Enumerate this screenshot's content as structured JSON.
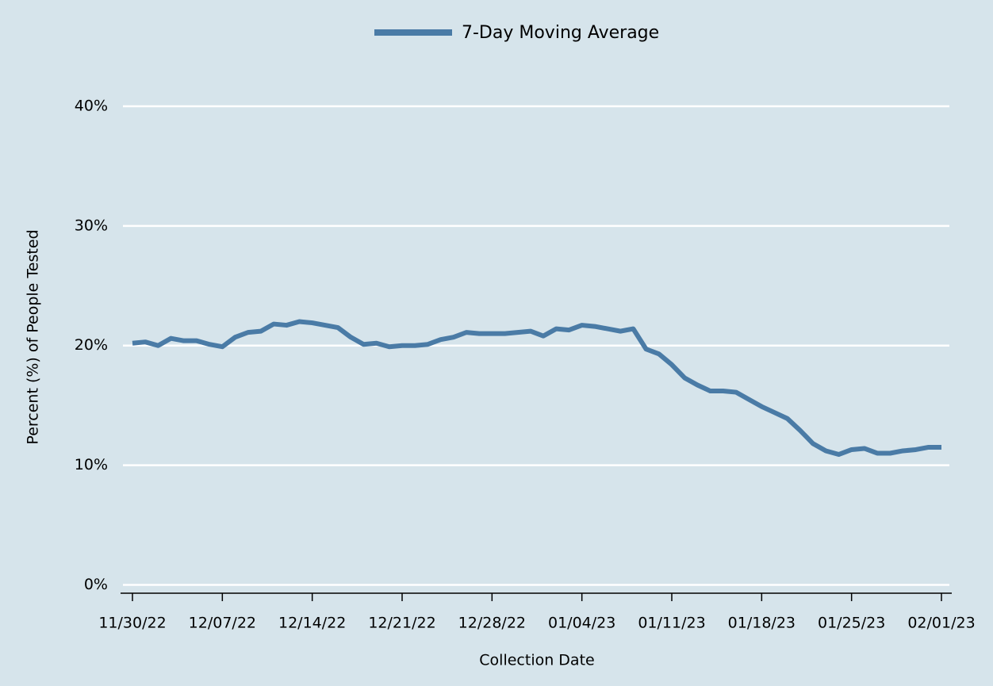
{
  "chart_data": {
    "type": "line",
    "legend_position": "top",
    "x_label": "Collection Date",
    "y_label": "Percent (%) of People Tested",
    "x": [
      "2022-11-30",
      "2022-12-01",
      "2022-12-02",
      "2022-12-03",
      "2022-12-04",
      "2022-12-05",
      "2022-12-06",
      "2022-12-07",
      "2022-12-08",
      "2022-12-09",
      "2022-12-10",
      "2022-12-11",
      "2022-12-12",
      "2022-12-13",
      "2022-12-14",
      "2022-12-15",
      "2022-12-16",
      "2022-12-17",
      "2022-12-18",
      "2022-12-19",
      "2022-12-20",
      "2022-12-21",
      "2022-12-22",
      "2022-12-23",
      "2022-12-24",
      "2022-12-25",
      "2022-12-26",
      "2022-12-27",
      "2022-12-28",
      "2022-12-29",
      "2022-12-30",
      "2022-12-31",
      "2023-01-01",
      "2023-01-02",
      "2023-01-03",
      "2023-01-04",
      "2023-01-05",
      "2023-01-06",
      "2023-01-07",
      "2023-01-08",
      "2023-01-09",
      "2023-01-10",
      "2023-01-11",
      "2023-01-12",
      "2023-01-13",
      "2023-01-14",
      "2023-01-15",
      "2023-01-16",
      "2023-01-17",
      "2023-01-18",
      "2023-01-19",
      "2023-01-20",
      "2023-01-21",
      "2023-01-22",
      "2023-01-23",
      "2023-01-24",
      "2023-01-25",
      "2023-01-26",
      "2023-01-27",
      "2023-01-28",
      "2023-01-29",
      "2023-01-30",
      "2023-01-31",
      "2023-02-01"
    ],
    "series": [
      {
        "name": "7-Day Moving Average",
        "color": "#4a7ba6",
        "values": [
          20.2,
          20.3,
          20.0,
          20.6,
          20.4,
          20.4,
          20.1,
          19.9,
          20.7,
          21.1,
          21.2,
          21.8,
          21.7,
          22.0,
          21.9,
          21.7,
          21.5,
          20.7,
          20.1,
          20.2,
          19.9,
          20.0,
          20.0,
          20.1,
          20.5,
          20.7,
          21.1,
          21.0,
          21.0,
          21.0,
          21.1,
          21.2,
          20.8,
          21.4,
          21.3,
          21.7,
          21.6,
          21.4,
          21.2,
          21.4,
          19.7,
          19.3,
          18.4,
          17.3,
          16.7,
          16.2,
          16.2,
          16.1,
          15.5,
          14.9,
          14.4,
          13.9,
          12.9,
          11.8,
          11.2,
          10.9,
          11.3,
          11.4,
          11.0,
          11.0,
          11.2,
          11.3,
          11.5,
          11.5
        ]
      }
    ],
    "xlim": [
      "2022-11-30",
      "2023-02-01"
    ],
    "xticks": [
      {
        "value": "2022-11-30",
        "label": "11/30/22"
      },
      {
        "value": "2022-12-07",
        "label": "12/07/22"
      },
      {
        "value": "2022-12-14",
        "label": "12/14/22"
      },
      {
        "value": "2022-12-21",
        "label": "12/21/22"
      },
      {
        "value": "2022-12-28",
        "label": "12/28/22"
      },
      {
        "value": "2023-01-04",
        "label": "01/04/23"
      },
      {
        "value": "2023-01-11",
        "label": "01/11/23"
      },
      {
        "value": "2023-01-18",
        "label": "01/18/23"
      },
      {
        "value": "2023-01-25",
        "label": "01/25/23"
      },
      {
        "value": "2023-02-01",
        "label": "02/01/23"
      }
    ],
    "ylim": [
      -0.7,
      40
    ],
    "yticks": [
      {
        "value": 0,
        "label": "0%"
      },
      {
        "value": 10,
        "label": "10%"
      },
      {
        "value": 20,
        "label": "20%"
      },
      {
        "value": 30,
        "label": "30%"
      },
      {
        "value": 40,
        "label": "40%"
      }
    ],
    "grid": true
  }
}
